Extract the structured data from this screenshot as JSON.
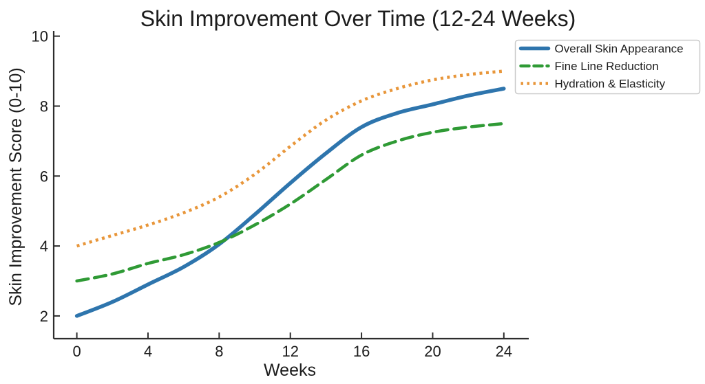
{
  "chart_data": {
    "type": "line",
    "title": "Skin Improvement Over Time (12-24 Weeks)",
    "xlabel": "Weeks",
    "ylabel": "Skin Improvement Score (0-10)",
    "x": [
      0,
      2,
      4,
      6,
      8,
      10,
      12,
      14,
      16,
      18,
      20,
      22,
      24
    ],
    "series": [
      {
        "name": "Overall Skin Appearance",
        "style": "solid",
        "color": "#2e75ad",
        "line_width": 5.5,
        "values": [
          2.0,
          2.4,
          2.9,
          3.4,
          4.05,
          4.9,
          5.8,
          6.65,
          7.4,
          7.8,
          8.05,
          8.3,
          8.5
        ]
      },
      {
        "name": "Fine Line Reduction",
        "style": "dashed",
        "color": "#2f9a35",
        "line_width": 4.5,
        "values": [
          3.0,
          3.2,
          3.5,
          3.75,
          4.1,
          4.6,
          5.2,
          5.9,
          6.6,
          7.0,
          7.25,
          7.4,
          7.5
        ]
      },
      {
        "name": "Hydration & Elasticity",
        "style": "dotted",
        "color": "#e8963a",
        "line_width": 4.5,
        "values": [
          4.0,
          4.3,
          4.6,
          4.95,
          5.4,
          6.05,
          6.85,
          7.6,
          8.15,
          8.5,
          8.75,
          8.9,
          9.0
        ]
      }
    ],
    "xticks": [
      0,
      4,
      8,
      12,
      16,
      20,
      24
    ],
    "yticks": [
      2,
      4,
      6,
      8,
      10
    ],
    "xlim": [
      -1.3,
      25.4
    ],
    "ylim": [
      1.35,
      10.15
    ],
    "grid": false,
    "legend_position": "upper right",
    "colors": {
      "text": "#1c1c1c",
      "spine": "#2d2d2d",
      "legend_border": "#c9c9c9",
      "legend_background": "#ffffff",
      "figure_background": "#ffffff"
    }
  }
}
